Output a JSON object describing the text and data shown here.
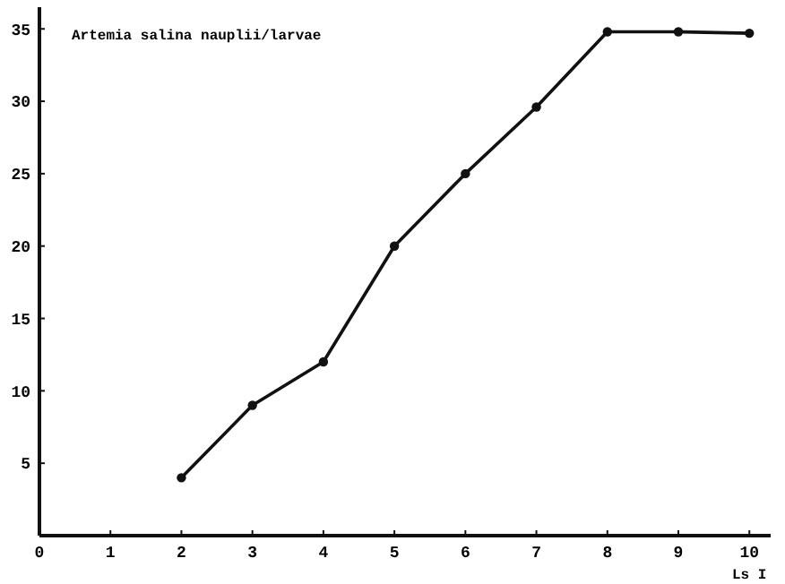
{
  "chart_data": {
    "type": "line",
    "title": "Artemia salina nauplii/larvae",
    "xlabel": "Ls I",
    "x": [
      2,
      3,
      4,
      5,
      6,
      7,
      8,
      9,
      10
    ],
    "values": [
      4,
      9,
      12,
      20,
      25,
      29.6,
      34.8,
      34.8,
      34.7
    ],
    "color": "#111111",
    "marker": "circle",
    "line_style": "solid",
    "xlim": [
      0,
      10.3
    ],
    "xticks": [
      0,
      1,
      2,
      3,
      4,
      5,
      6,
      7,
      8,
      9,
      10
    ],
    "ylim": [
      0,
      36.5
    ],
    "yticks": [
      5,
      10,
      15,
      20,
      25,
      30,
      35
    ],
    "grid": false
  }
}
